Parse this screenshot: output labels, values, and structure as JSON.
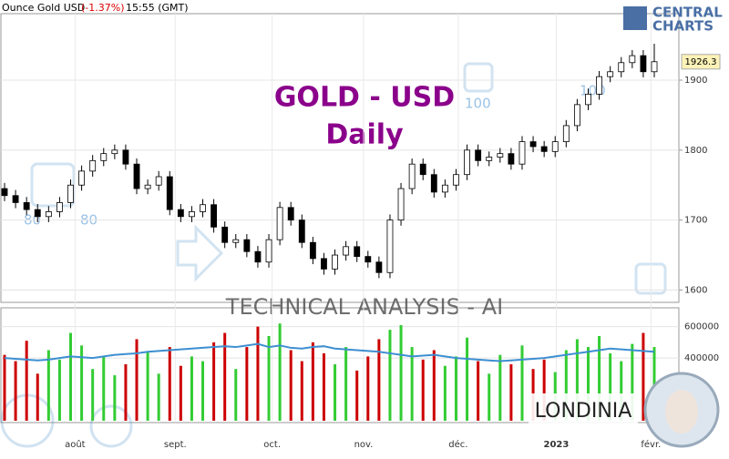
{
  "header": {
    "instrument": "Ounce Gold USD",
    "change": "(-1.37%)",
    "time": "15:55 (GMT)",
    "logo_top": "CENTRAL",
    "logo_bottom": "CHARTS"
  },
  "chart_data": {
    "type": "candlestick",
    "title": "GOLD - USD",
    "subtitle": "Daily",
    "watermark": "TECHNICAL  ANALYSIS - AI",
    "brand": "LONDINIA",
    "watermark_labels": [
      "80",
      "80",
      "100",
      "100"
    ],
    "up_color": "#ffffff",
    "down_color": "#000000",
    "volume_up_color": "#33cc33",
    "volume_down_color": "#cc0000",
    "volume_ma_color": "#3d8fd1",
    "open": [
      1745,
      1735,
      1725,
      1715,
      1705,
      1712,
      1725,
      1750,
      1770,
      1785,
      1795,
      1800,
      1780,
      1745,
      1750,
      1762,
      1715,
      1705,
      1712,
      1722,
      1690,
      1668,
      1672,
      1655,
      1640,
      1672,
      1718,
      1700,
      1668,
      1645,
      1630,
      1650,
      1662,
      1648,
      1640,
      1625,
      1700,
      1745,
      1780,
      1765,
      1740,
      1750,
      1765,
      1800,
      1785,
      1790,
      1795,
      1780,
      1812,
      1805,
      1798,
      1812,
      1835,
      1865,
      1880,
      1905,
      1912,
      1925,
      1935,
      1912
    ],
    "high": [
      1753,
      1743,
      1733,
      1723,
      1720,
      1733,
      1758,
      1778,
      1793,
      1803,
      1808,
      1808,
      1788,
      1758,
      1770,
      1770,
      1723,
      1720,
      1730,
      1730,
      1698,
      1680,
      1680,
      1663,
      1680,
      1726,
      1726,
      1708,
      1676,
      1653,
      1658,
      1670,
      1670,
      1656,
      1648,
      1708,
      1753,
      1788,
      1788,
      1773,
      1758,
      1773,
      1808,
      1808,
      1798,
      1803,
      1803,
      1820,
      1820,
      1813,
      1820,
      1843,
      1873,
      1888,
      1913,
      1920,
      1933,
      1943,
      1943,
      1952
    ],
    "low": [
      1727,
      1717,
      1707,
      1697,
      1697,
      1704,
      1717,
      1742,
      1762,
      1777,
      1787,
      1772,
      1737,
      1737,
      1742,
      1707,
      1697,
      1697,
      1704,
      1682,
      1660,
      1660,
      1647,
      1632,
      1632,
      1664,
      1692,
      1660,
      1637,
      1622,
      1622,
      1642,
      1640,
      1632,
      1617,
      1617,
      1692,
      1737,
      1757,
      1732,
      1732,
      1742,
      1757,
      1777,
      1777,
      1782,
      1772,
      1772,
      1797,
      1790,
      1790,
      1804,
      1827,
      1857,
      1872,
      1897,
      1904,
      1917,
      1904,
      1904
    ],
    "close": [
      1735,
      1725,
      1715,
      1705,
      1712,
      1725,
      1750,
      1770,
      1785,
      1795,
      1800,
      1780,
      1745,
      1750,
      1762,
      1715,
      1705,
      1712,
      1722,
      1690,
      1668,
      1672,
      1655,
      1640,
      1672,
      1718,
      1700,
      1668,
      1645,
      1630,
      1650,
      1662,
      1648,
      1640,
      1625,
      1700,
      1745,
      1780,
      1765,
      1740,
      1750,
      1765,
      1800,
      1785,
      1790,
      1795,
      1780,
      1812,
      1805,
      1798,
      1812,
      1835,
      1865,
      1880,
      1905,
      1912,
      1925,
      1935,
      1912,
      1926.3
    ],
    "volume": [
      420000,
      380000,
      510000,
      300000,
      450000,
      390000,
      560000,
      480000,
      330000,
      410000,
      290000,
      360000,
      520000,
      440000,
      300000,
      470000,
      350000,
      410000,
      380000,
      500000,
      560000,
      330000,
      470000,
      600000,
      540000,
      620000,
      450000,
      380000,
      500000,
      430000,
      360000,
      470000,
      320000,
      410000,
      520000,
      580000,
      610000,
      470000,
      390000,
      450000,
      350000,
      410000,
      530000,
      380000,
      300000,
      420000,
      360000,
      480000,
      330000,
      390000,
      310000,
      450000,
      520000,
      470000,
      540000,
      430000,
      380000,
      490000,
      560000,
      470000
    ],
    "volume_ma": [
      400000,
      395000,
      390000,
      385000,
      390000,
      400000,
      410000,
      405000,
      400000,
      410000,
      420000,
      425000,
      430000,
      440000,
      445000,
      450000,
      455000,
      460000,
      465000,
      470000,
      475000,
      470000,
      480000,
      490000,
      470000,
      480000,
      465000,
      460000,
      470000,
      475000,
      460000,
      455000,
      450000,
      445000,
      440000,
      430000,
      420000,
      410000,
      415000,
      420000,
      410000,
      400000,
      395000,
      390000,
      385000,
      380000,
      385000,
      390000,
      395000,
      400000,
      410000,
      420000,
      430000,
      440000,
      450000,
      460000,
      455000,
      450000,
      445000,
      440000
    ],
    "ylim": [
      1585,
      1995
    ],
    "yticks": [
      1600,
      1700,
      1800,
      1900
    ],
    "volume_ylim": [
      0,
      720000
    ],
    "volume_yticks": [
      400000,
      600000
    ],
    "xticks": [
      {
        "value": 6.4,
        "label": "août"
      },
      {
        "value": 15.5,
        "label": "sept."
      },
      {
        "value": 24.3,
        "label": "oct."
      },
      {
        "value": 32.6,
        "label": "nov."
      },
      {
        "value": 41.2,
        "label": "déc."
      },
      {
        "value": 50.1,
        "label": "2023"
      },
      {
        "value": 58.7,
        "label": "févr."
      }
    ],
    "grid": true
  }
}
